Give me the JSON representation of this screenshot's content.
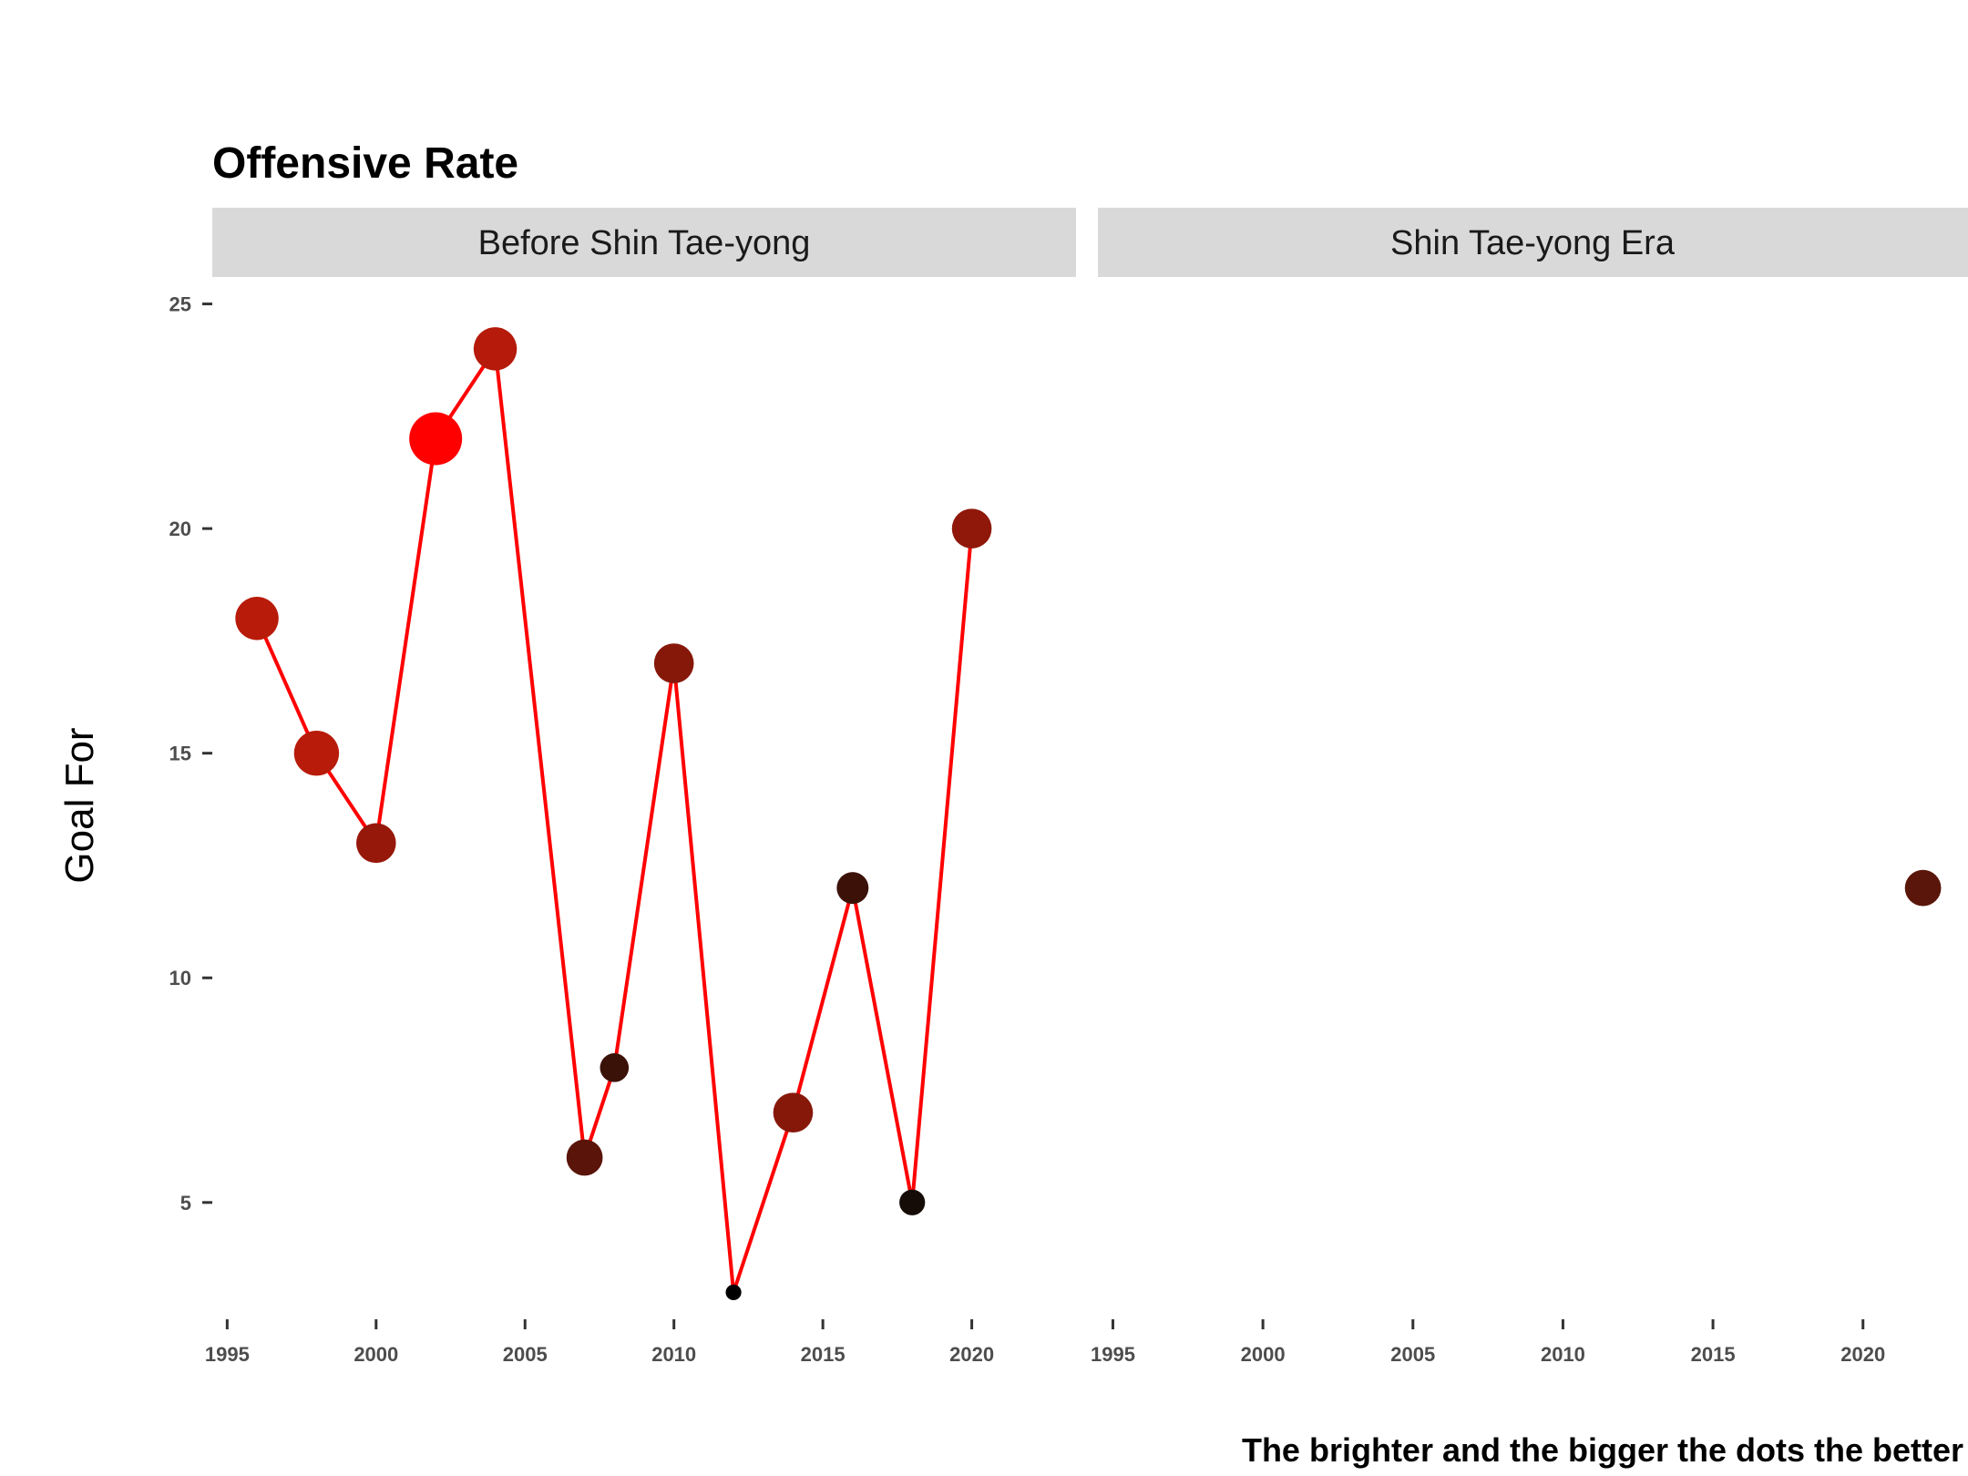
{
  "chart_data": {
    "type": "line",
    "title": "Offensive Rate",
    "ylabel": "Goal For",
    "xlabel": "",
    "caption": "The brighter and the bigger the dots the better",
    "line_color": "#ff0000",
    "xlim": [
      1994.5,
      2023.5
    ],
    "ylim": [
      2.4,
      25.6
    ],
    "x_ticks": [
      1995,
      2000,
      2005,
      2010,
      2015,
      2020
    ],
    "y_ticks": [
      5,
      10,
      15,
      20,
      25
    ],
    "grid": false,
    "legend": "none",
    "facets": [
      {
        "name": "Before Shin Tae-yong",
        "points": [
          {
            "x": 1996,
            "y": 18,
            "color": "#b81b0a",
            "size": 0.78
          },
          {
            "x": 1998,
            "y": 15,
            "color": "#b81b0a",
            "size": 0.82
          },
          {
            "x": 2000,
            "y": 13,
            "color": "#96180a",
            "size": 0.7
          },
          {
            "x": 2002,
            "y": 22,
            "color": "#ff0000",
            "size": 1.0
          },
          {
            "x": 2004,
            "y": 24,
            "color": "#b51a0a",
            "size": 0.78
          },
          {
            "x": 2007,
            "y": 6,
            "color": "#5a140a",
            "size": 0.62
          },
          {
            "x": 2008,
            "y": 8,
            "color": "#3a1208",
            "size": 0.45
          },
          {
            "x": 2010,
            "y": 17,
            "color": "#86180a",
            "size": 0.7
          },
          {
            "x": 2012,
            "y": 3,
            "color": "#000000",
            "size": 0.15
          },
          {
            "x": 2014,
            "y": 7,
            "color": "#86180a",
            "size": 0.7
          },
          {
            "x": 2016,
            "y": 12,
            "color": "#3c1208",
            "size": 0.52
          },
          {
            "x": 2018,
            "y": 5,
            "color": "#150c08",
            "size": 0.38
          },
          {
            "x": 2020,
            "y": 20,
            "color": "#8f180a",
            "size": 0.7
          }
        ]
      },
      {
        "name": "Shin Tae-yong Era",
        "points": [
          {
            "x": 2022,
            "y": 12,
            "color": "#5a160a",
            "size": 0.62
          }
        ]
      }
    ]
  }
}
